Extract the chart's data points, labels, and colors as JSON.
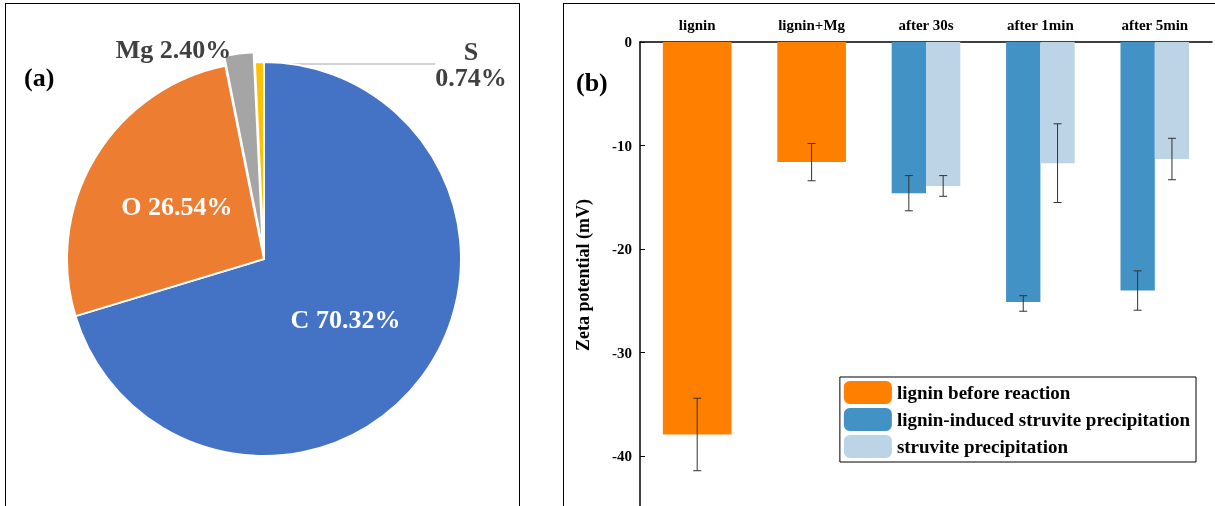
{
  "chart_data": [
    {
      "type": "pie",
      "categories": [
        "C",
        "O",
        "Mg",
        "S"
      ],
      "values": [
        70.32,
        26.54,
        2.4,
        0.74
      ],
      "colors": [
        "#4472c4",
        "#ed7d31",
        "#a5a5a5",
        "#ffc000"
      ],
      "value_labels": [
        "70.32%",
        "26.54%",
        "2.40%",
        "0.74%"
      ],
      "annotations": [
        "(a)"
      ],
      "legend": false
    },
    {
      "type": "bar",
      "categories": [
        "lignin",
        "lignin+Mg",
        "after 30s",
        "after 1min",
        "after 5min"
      ],
      "ylabel": "Zeta potential (mV)",
      "ylim": [
        -45,
        0
      ],
      "yticks": [
        -40,
        -30,
        -20,
        -10,
        0
      ],
      "grid": false,
      "legend": "bottom right",
      "annotations": [
        "(b)"
      ],
      "series": [
        {
          "name": "lignin before reaction",
          "color": "#ff8000",
          "values": [
            -37.9,
            -11.6,
            null,
            null,
            null
          ],
          "errors": [
            3.5,
            1.8,
            null,
            null,
            null
          ]
        },
        {
          "name": "lignin-induced struvite precipitation",
          "color": "#4292c6",
          "values": [
            null,
            null,
            -14.6,
            -25.1,
            -24.0
          ],
          "errors": [
            null,
            null,
            1.7,
            [
              -26.0,
              -24.5
            ],
            1.9
          ]
        },
        {
          "name": "struvite precipitation",
          "color": "#bcd4e6",
          "values": [
            null,
            null,
            -13.9,
            -11.7,
            -11.3
          ],
          "errors": [
            null,
            null,
            1.0,
            3.8,
            2.0
          ]
        }
      ]
    }
  ]
}
